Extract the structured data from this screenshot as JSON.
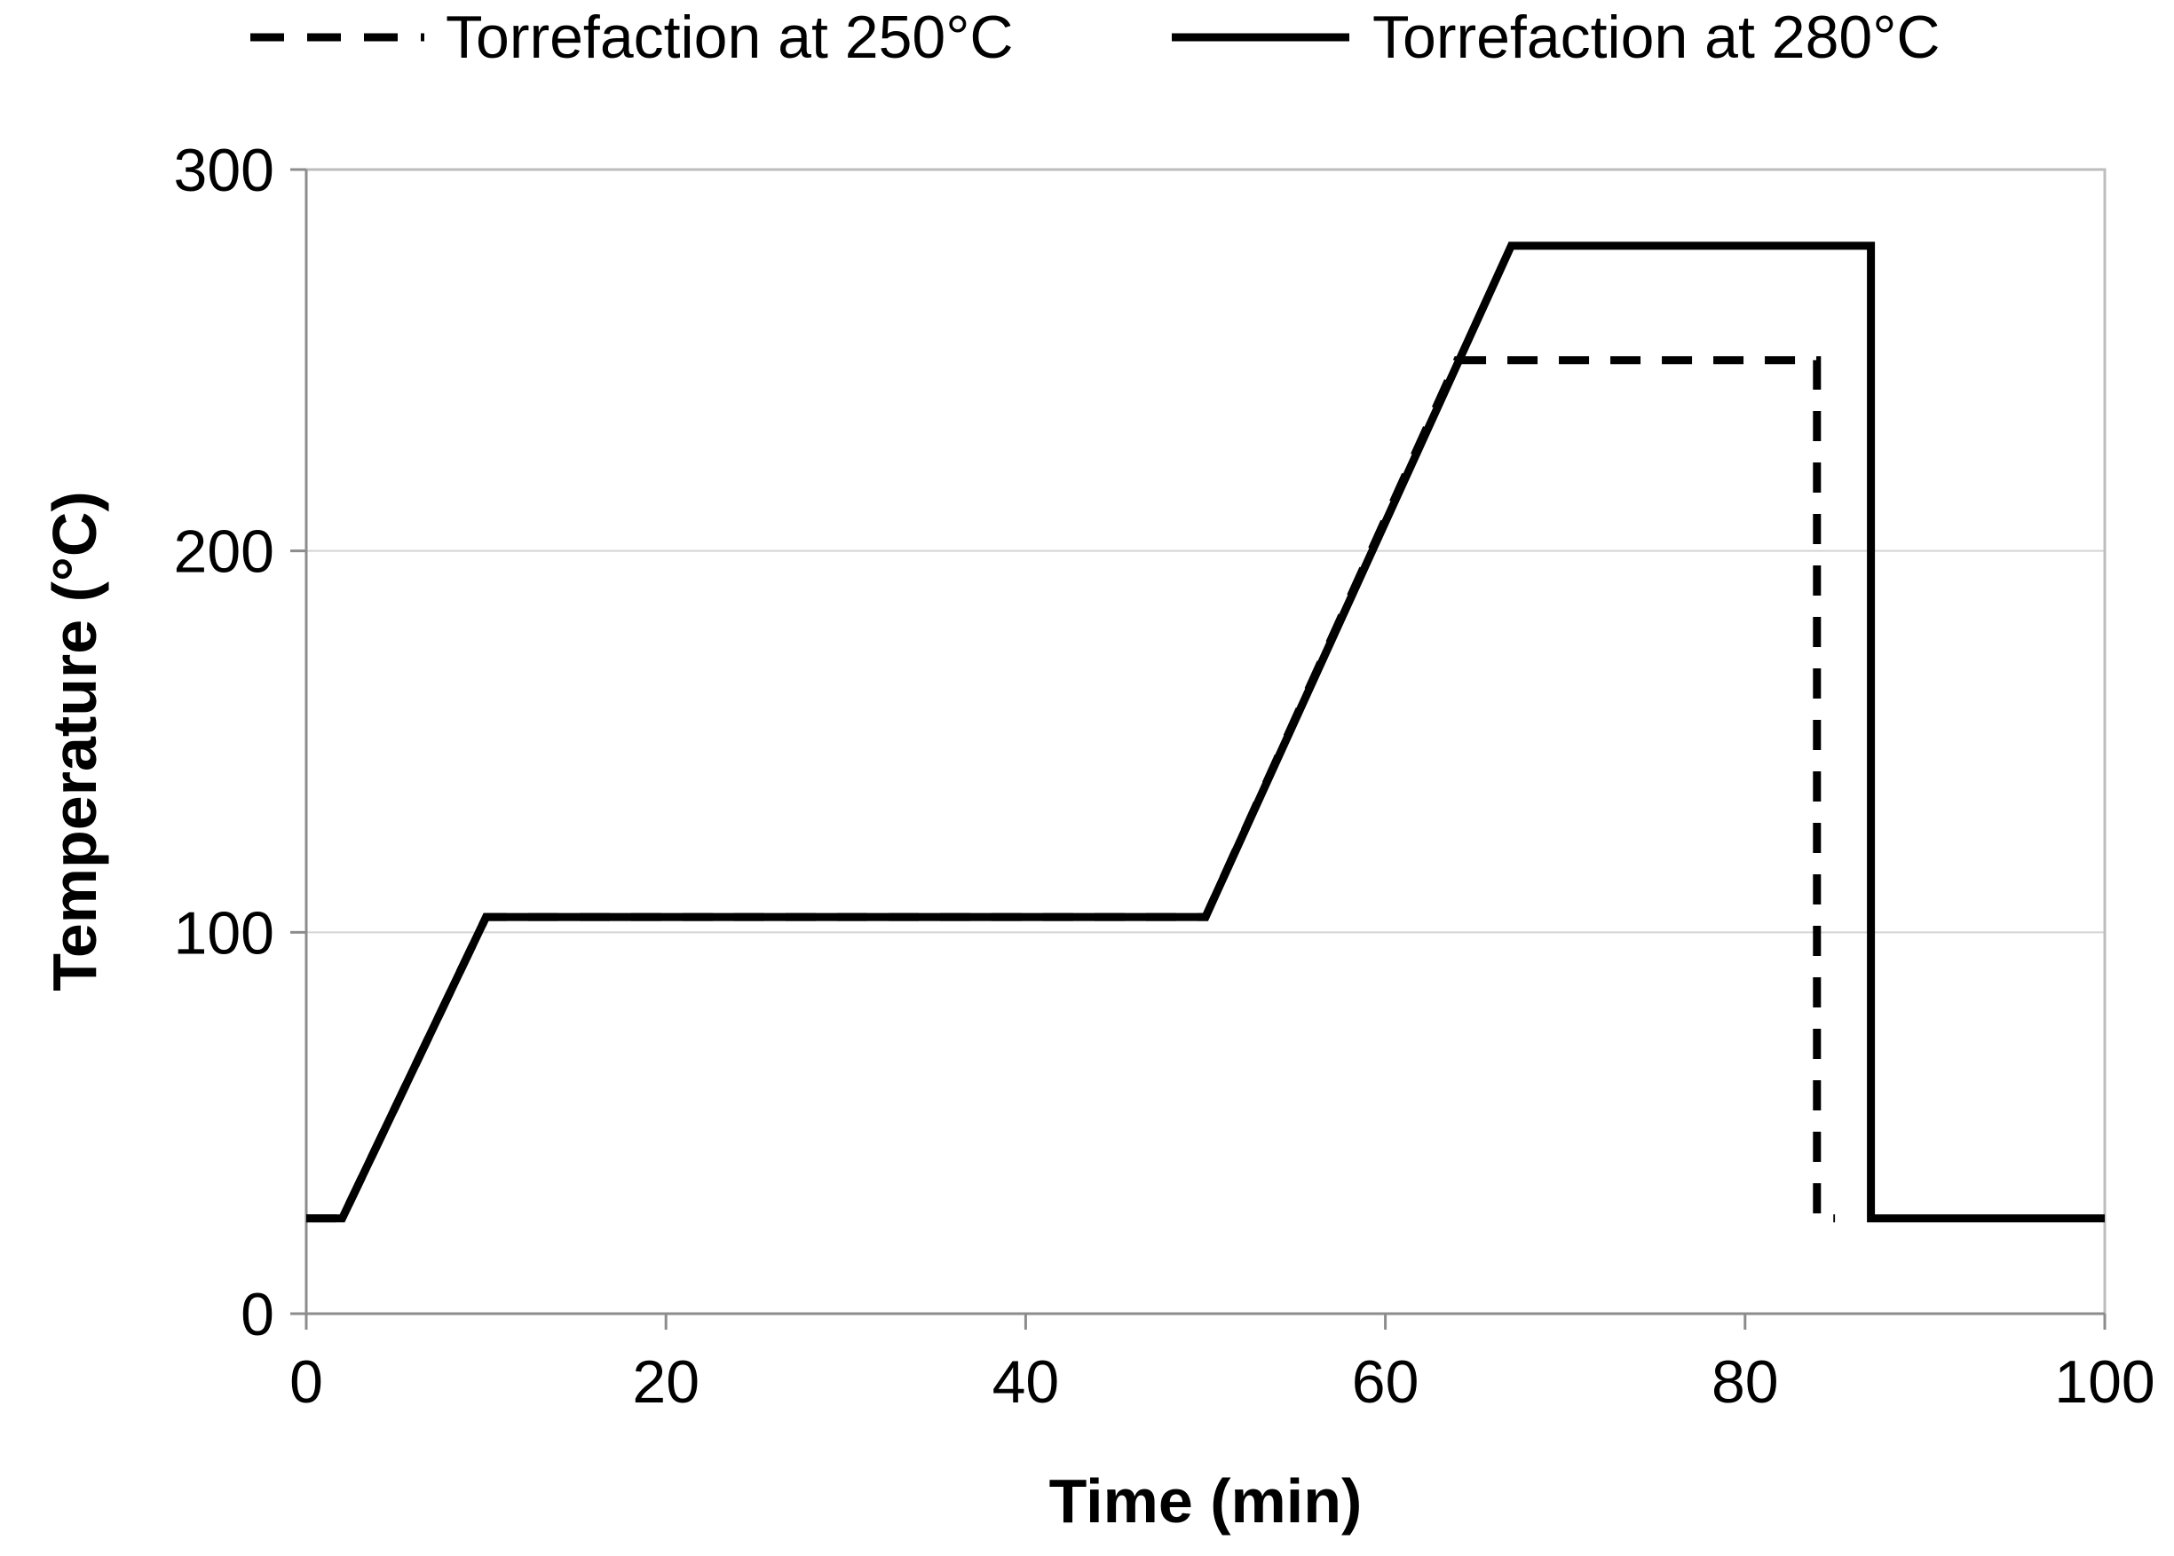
{
  "chart_data": {
    "type": "line",
    "title": "",
    "xlabel": "Time (min)",
    "ylabel": "Temperature (°C)",
    "xlim": [
      0,
      100
    ],
    "ylim": [
      0,
      300
    ],
    "xticks": [
      0,
      20,
      40,
      60,
      80,
      100
    ],
    "yticks": [
      0,
      100,
      200,
      300
    ],
    "grid": {
      "horizontal": true,
      "vertical": false
    },
    "legend_position": "top",
    "series": [
      {
        "name": "Torrefaction at 250°C",
        "style": "dashed",
        "color": "#000000",
        "x": [
          0,
          2,
          10,
          50,
          64,
          84,
          84,
          85
        ],
        "y": [
          25,
          25,
          104,
          104,
          250,
          250,
          25,
          25
        ]
      },
      {
        "name": "Torrefaction at 280°C",
        "style": "solid",
        "color": "#000000",
        "x": [
          0,
          2,
          10,
          50,
          67,
          87,
          87,
          100
        ],
        "y": [
          25,
          25,
          104,
          104,
          280,
          280,
          25,
          25
        ]
      }
    ]
  }
}
